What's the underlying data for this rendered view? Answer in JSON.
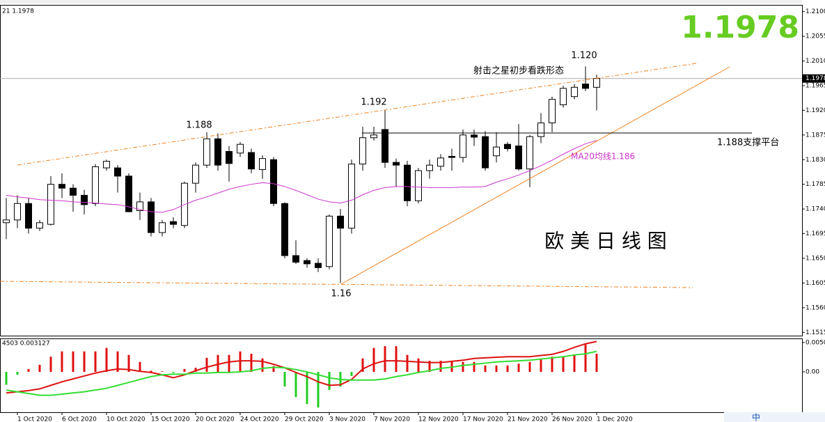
{
  "chart_data": [
    {
      "type": "candlestick",
      "header": "21 1.1978",
      "open": [
        1.1715,
        1.172,
        1.175,
        1.1705,
        1.1712,
        1.1785,
        1.1778,
        1.1765,
        1.175,
        1.1815,
        1.1815,
        1.18,
        1.1737,
        1.1753,
        1.1697,
        1.1717,
        1.171,
        1.1787,
        1.182,
        1.1868,
        1.1845,
        1.1842,
        1.1843,
        1.1812,
        1.183,
        1.175,
        1.1655,
        1.1646,
        1.1641,
        1.1635,
        1.1727,
        1.1705,
        1.1822,
        1.187,
        1.1885,
        1.1825,
        1.182,
        1.1755,
        1.181,
        1.1818,
        1.1836,
        1.1834,
        1.1875,
        1.1872,
        1.1837,
        1.1858,
        1.1855,
        1.1813,
        1.1872,
        1.1897,
        1.193,
        1.1945,
        1.1968,
        1.1962
      ],
      "high": [
        1.176,
        1.1765,
        1.176,
        1.172,
        1.18,
        1.1805,
        1.1785,
        1.1775,
        1.1822,
        1.183,
        1.182,
        1.1805,
        1.177,
        1.176,
        1.172,
        1.1725,
        1.179,
        1.1825,
        1.188,
        1.1878,
        1.1855,
        1.1862,
        1.185,
        1.1838,
        1.1835,
        1.1752,
        1.1683,
        1.165,
        1.165,
        1.173,
        1.174,
        1.183,
        1.189,
        1.189,
        1.192,
        1.1832,
        1.1828,
        1.1815,
        1.183,
        1.184,
        1.185,
        1.1885,
        1.1885,
        1.1882,
        1.188,
        1.1862,
        1.1895,
        1.1875,
        1.1915,
        1.1945,
        1.1965,
        1.1968,
        1.2,
        1.1985
      ],
      "low": [
        1.1685,
        1.1705,
        1.1695,
        1.17,
        1.171,
        1.176,
        1.1735,
        1.173,
        1.1745,
        1.181,
        1.177,
        1.1735,
        1.172,
        1.169,
        1.169,
        1.1705,
        1.1705,
        1.177,
        1.1815,
        1.181,
        1.179,
        1.1835,
        1.1805,
        1.1795,
        1.1745,
        1.165,
        1.164,
        1.1633,
        1.1625,
        1.163,
        1.1605,
        1.1695,
        1.181,
        1.1865,
        1.1815,
        1.178,
        1.1745,
        1.175,
        1.1795,
        1.181,
        1.181,
        1.1825,
        1.1855,
        1.181,
        1.1825,
        1.1845,
        1.181,
        1.178,
        1.186,
        1.188,
        1.1925,
        1.194,
        1.1955,
        1.192
      ],
      "close": [
        1.172,
        1.175,
        1.1705,
        1.1715,
        1.1785,
        1.1778,
        1.1765,
        1.1748,
        1.1817,
        1.1827,
        1.18,
        1.1735,
        1.1753,
        1.1697,
        1.1715,
        1.1712,
        1.1787,
        1.182,
        1.1868,
        1.182,
        1.1823,
        1.1858,
        1.1813,
        1.1832,
        1.175,
        1.1655,
        1.1643,
        1.164,
        1.1633,
        1.1727,
        1.1705,
        1.1822,
        1.187,
        1.1875,
        1.1825,
        1.182,
        1.1755,
        1.181,
        1.182,
        1.1833,
        1.1834,
        1.1875,
        1.1871,
        1.1815,
        1.1853,
        1.185,
        1.1813,
        1.1872,
        1.1897,
        1.194,
        1.196,
        1.1962,
        1.196,
        1.1978
      ],
      "ma": {
        "color": "#cc33cc",
        "values": [
          1.1765,
          1.1762,
          1.176,
          1.1757,
          1.1756,
          1.1755,
          1.1753,
          1.1752,
          1.1751,
          1.1749,
          1.1748,
          1.1744,
          1.1739,
          1.1735,
          1.1734,
          1.1739,
          1.1748,
          1.1756,
          1.1762,
          1.1769,
          1.1776,
          1.1781,
          1.1785,
          1.1788,
          1.1786,
          1.1781,
          1.1774,
          1.1766,
          1.1758,
          1.1753,
          1.1751,
          1.1756,
          1.1766,
          1.1774,
          1.1779,
          1.1781,
          1.1781,
          1.178,
          1.1779,
          1.1779,
          1.1779,
          1.178,
          1.178,
          1.1781,
          1.1789,
          1.1795,
          1.1802,
          1.181,
          1.1819,
          1.1829,
          1.184,
          1.185,
          1.1859,
          1.1865
        ]
      },
      "ylim": [
        1.1509,
        1.2111
      ],
      "yticks": [
        {
          "value": 1.21,
          "label": "1.2100"
        },
        {
          "value": 1.2055,
          "label": "1.2055"
        },
        {
          "value": 1.201,
          "label": "1.2010"
        },
        {
          "value": 1.1965,
          "label": "1.1965"
        },
        {
          "value": 1.192,
          "label": "1.1920"
        },
        {
          "value": 1.1875,
          "label": "1.1875"
        },
        {
          "value": 1.183,
          "label": "1.1830"
        },
        {
          "value": 1.1785,
          "label": "1.1785"
        },
        {
          "value": 1.174,
          "label": "1.1740"
        },
        {
          "value": 1.1695,
          "label": "1.1695"
        },
        {
          "value": 1.165,
          "label": "1.1650"
        },
        {
          "value": 1.1605,
          "label": "1.1605"
        },
        {
          "value": 1.156,
          "label": "1.1560"
        },
        {
          "value": 1.1515,
          "label": "1.1515"
        }
      ],
      "current_price": 1.1978,
      "xticks": [
        {
          "value": 1,
          "label": "1 Oct 2020"
        },
        {
          "value": 5,
          "label": "6 Oct 2020"
        },
        {
          "value": 9,
          "label": "10 Oct 2020"
        },
        {
          "value": 13,
          "label": "15 Oct 2020"
        },
        {
          "value": 17,
          "label": "20 Oct 2020"
        },
        {
          "value": 21,
          "label": "24 Oct 2020"
        },
        {
          "value": 25,
          "label": "29 Oct 2020"
        },
        {
          "value": 29,
          "label": "3 Nov 2020"
        },
        {
          "value": 33,
          "label": "7 Nov 2020"
        },
        {
          "value": 37,
          "label": "12 Nov 2020"
        },
        {
          "value": 41,
          "label": "17 Nov 2020"
        },
        {
          "value": 45,
          "label": "21 Nov 2020"
        },
        {
          "value": 49,
          "label": "26 Nov 2020"
        },
        {
          "value": 53,
          "label": "1 Dec 2020"
        }
      ],
      "annotations": [
        "1.1978",
        "1.120",
        "射击之星初步看跌形态",
        "1.192",
        "1.188",
        "1.16",
        "1.188支撑平台",
        "MA20均线1.186",
        "欧 美 日 线 图"
      ]
    },
    {
      "type": "macd",
      "header": "4503 0.003127",
      "histogram": [
        -0.0022,
        -0.0005,
        0.0005,
        0.0012,
        0.0026,
        0.0035,
        0.0035,
        0.0035,
        0.0035,
        0.0041,
        0.0035,
        0.0029,
        0.0017,
        0.0002,
        0.0001,
        -0.0002,
        0.0005,
        0.0007,
        0.0024,
        0.0029,
        0.0029,
        0.0035,
        0.0031,
        0.0023,
        0.001,
        -0.0025,
        -0.0043,
        -0.0055,
        -0.0061,
        -0.0031,
        -0.0025,
        -0.0007,
        0.0023,
        0.0041,
        0.0044,
        0.0044,
        0.0029,
        0.0023,
        0.0019,
        0.0019,
        0.0019,
        0.0017,
        0.0017,
        0.0011,
        0.0011,
        0.0011,
        0.0014,
        0.0017,
        0.0023,
        0.0026,
        0.0026,
        0.0029,
        0.0047,
        0.0031
      ],
      "hist_colors": {
        "up": "#e01010",
        "down": "#22cc22"
      },
      "lines": [
        {
          "color": "#dd1111",
          "values": [
            -0.0036,
            -0.0034,
            -0.0032,
            -0.0029,
            -0.0023,
            -0.0017,
            -0.0012,
            -0.0007,
            -0.0002,
            0.0002,
            0.0005,
            0.0004,
            0.0001,
            -0.0001,
            -0.0005,
            -0.001,
            -0.0005,
            0.0002,
            0.0008,
            0.0013,
            0.0017,
            0.0019,
            0.0019,
            0.0018,
            0.0013,
            0.0007,
            -0.0001,
            -0.0008,
            -0.0017,
            -0.0023,
            -0.0022,
            -0.0013,
            0.0005,
            0.0014,
            0.0019,
            0.0019,
            0.0018,
            0.0017,
            0.0016,
            0.0016,
            0.0018,
            0.002,
            0.0023,
            0.0024,
            0.0025,
            0.0026,
            0.0026,
            0.0026,
            0.0028,
            0.003,
            0.0035,
            0.0042,
            0.0048,
            0.0052
          ]
        },
        {
          "color": "#33dd33",
          "values": [
            -0.0031,
            -0.0034,
            -0.0037,
            -0.004,
            -0.004,
            -0.0038,
            -0.0036,
            -0.0034,
            -0.0031,
            -0.0028,
            -0.0023,
            -0.0018,
            -0.0013,
            -0.0008,
            -0.0005,
            -0.0004,
            -0.0004,
            -0.0002,
            -0.0002,
            -0.0001,
            -0.0001,
            0,
            0.0002,
            0.0006,
            0.0008,
            0.0007,
            0.0004,
            0,
            -0.0005,
            -0.001,
            -0.0013,
            -0.0014,
            -0.0014,
            -0.0014,
            -0.0012,
            -0.0008,
            -0.0005,
            -0.0001,
            0.0002,
            0.0006,
            0.0008,
            0.0011,
            0.0013,
            0.0015,
            0.0017,
            0.0018,
            0.0019,
            0.002,
            0.0022,
            0.0024,
            0.0026,
            0.0029,
            0.0031,
            0.0035
          ]
        }
      ],
      "ylim": [
        -0.0069,
        0.0056
      ],
      "yticks": [
        0.00502,
        {
          "value": 0,
          "label": "0.00"
        }
      ]
    }
  ],
  "taskbar": "中"
}
